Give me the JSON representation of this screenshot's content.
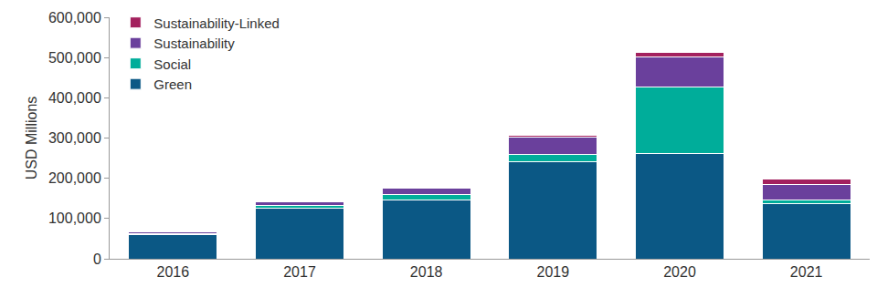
{
  "chart_data": {
    "type": "bar",
    "stacked": true,
    "y_label": "USD Millions",
    "categories": [
      "2016",
      "2017",
      "2018",
      "2019",
      "2020",
      "2021"
    ],
    "series": [
      {
        "name": "Green",
        "color": "#0b5885",
        "values": [
          60000,
          125000,
          147000,
          241000,
          262000,
          137000
        ]
      },
      {
        "name": "Social",
        "color": "#00ad9a",
        "values": [
          2000,
          8000,
          12000,
          18000,
          165000,
          10000
        ]
      },
      {
        "name": "Sustainability",
        "color": "#6a409c",
        "values": [
          5000,
          8000,
          17000,
          43000,
          75000,
          38000
        ]
      },
      {
        "name": "Sustainability-Linked",
        "color": "#a3215e",
        "values": [
          0,
          1000,
          1000,
          5000,
          10000,
          12000
        ]
      }
    ],
    "ylim": [
      0,
      600000
    ],
    "yticks": [
      0,
      {
        "value": 100000,
        "label": "100,000"
      },
      {
        "value": 200000,
        "label": "200,000"
      },
      {
        "value": 300000,
        "label": "300,000"
      },
      {
        "value": 400000,
        "label": "400,000"
      },
      {
        "value": 500000,
        "label": "500,000"
      },
      {
        "value": 600000,
        "label": "600,000"
      }
    ],
    "grid": false,
    "legend": "top-left"
  }
}
